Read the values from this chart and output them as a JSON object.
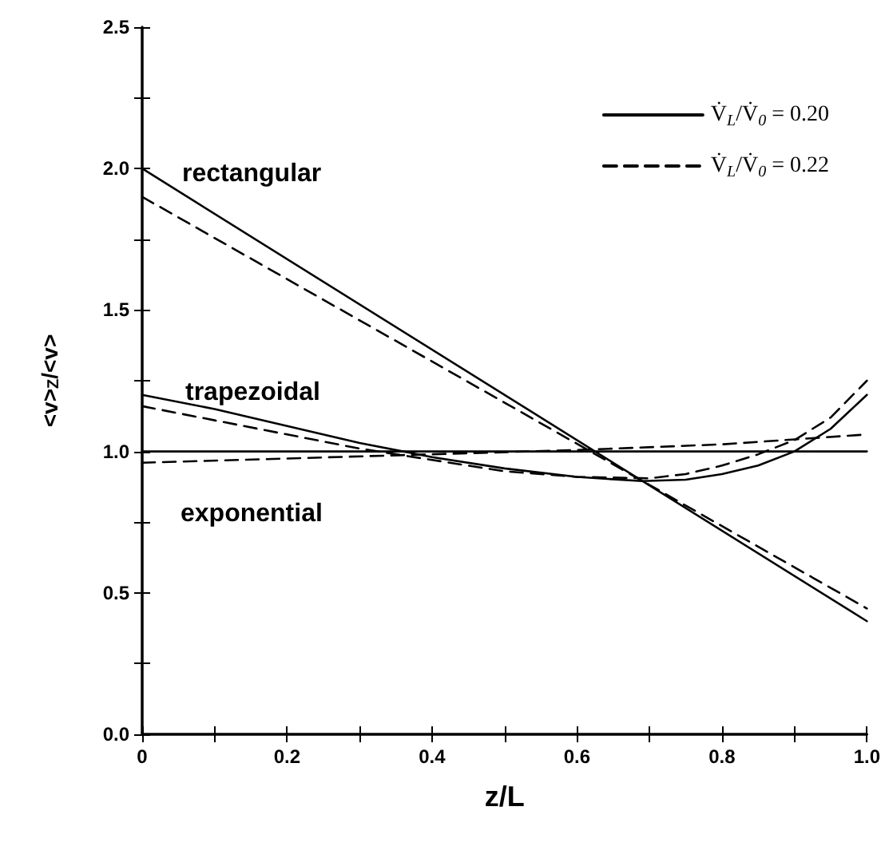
{
  "chart_data": {
    "type": "line",
    "xlabel": "z/L",
    "ylabel": "<v>$_{Z}$/<v>",
    "xlim": [
      0,
      1
    ],
    "ylim": [
      0,
      2.5
    ],
    "xticks": [
      0.0,
      {
        "value": 0.1,
        "label": null
      },
      {
        "value": 0.2,
        "label": "0.2"
      },
      {
        "value": 0.3,
        "label": null
      },
      {
        "value": 0.4,
        "label": "0.4"
      },
      {
        "value": 0.5,
        "label": null
      },
      {
        "value": 0.6,
        "label": "0.6"
      },
      {
        "value": 0.7,
        "label": null
      },
      {
        "value": 0.8,
        "label": "0.8"
      },
      {
        "value": 0.9,
        "label": null
      },
      {
        "value": 1.0,
        "label": "1.0"
      }
    ],
    "yticks": [
      {
        "value": 0,
        "label": "0.0"
      },
      {
        "value": 0.25,
        "label": null
      },
      {
        "value": 0.5,
        "label": "0.5"
      },
      {
        "value": 0.75,
        "label": null
      },
      {
        "value": 1.0,
        "label": "1.0"
      },
      {
        "value": 1.25,
        "label": null
      },
      {
        "value": 1.5,
        "label": "1.5"
      },
      {
        "value": 1.75,
        "label": null
      },
      {
        "value": 2.0,
        "label": "2.0"
      },
      {
        "value": 2.25,
        "label": null
      },
      {
        "value": 2.5,
        "label": "2.5"
      }
    ],
    "grid": false,
    "legend": "top right",
    "marker": "none",
    "series": [
      {
        "name": "V̇$_{L}$/V̇$_{0}$ = 0.20",
        "color": "#000000",
        "line_style": "solid",
        "x": [
          0,
          1
        ],
        "values": [
          2.0,
          0.4
        ]
      },
      {
        "name": "V̇$_{L}$/V̇$_{0}$ = 0.22",
        "color": "#000000",
        "line_style": "dashed",
        "x": [
          0,
          1
        ],
        "values": [
          1.9,
          0.445
        ]
      },
      {
        "color": "#000000",
        "line_style": "solid",
        "x": [
          0,
          0.1,
          0.2,
          0.3,
          0.4,
          0.5,
          0.6,
          0.69,
          0.75,
          0.8,
          0.85,
          0.9,
          0.95,
          1.0
        ],
        "values": [
          1.2,
          1.15,
          1.09,
          1.03,
          0.98,
          0.94,
          0.91,
          0.895,
          0.9,
          0.92,
          0.95,
          1.0,
          1.08,
          1.2
        ]
      },
      {
        "color": "#000000",
        "line_style": "dashed",
        "x": [
          0,
          0.1,
          0.2,
          0.3,
          0.4,
          0.5,
          0.6,
          0.7,
          0.75,
          0.8,
          0.85,
          0.9,
          0.95,
          1.0
        ],
        "values": [
          1.16,
          1.11,
          1.06,
          1.01,
          0.97,
          0.93,
          0.91,
          0.905,
          0.92,
          0.95,
          0.99,
          1.04,
          1.12,
          1.25
        ]
      },
      {
        "color": "#000000",
        "line_style": "solid",
        "x": [
          0,
          1
        ],
        "values": [
          1.0,
          1.0
        ]
      },
      {
        "color": "#000000",
        "line_style": "dashed",
        "x": [
          0,
          0.2,
          0.4,
          0.6,
          0.8,
          1.0
        ],
        "values": [
          0.96,
          0.975,
          0.99,
          1.005,
          1.025,
          1.06
        ]
      }
    ],
    "annotations": [
      "rectangular",
      "trapezoidal",
      "exponential"
    ]
  }
}
